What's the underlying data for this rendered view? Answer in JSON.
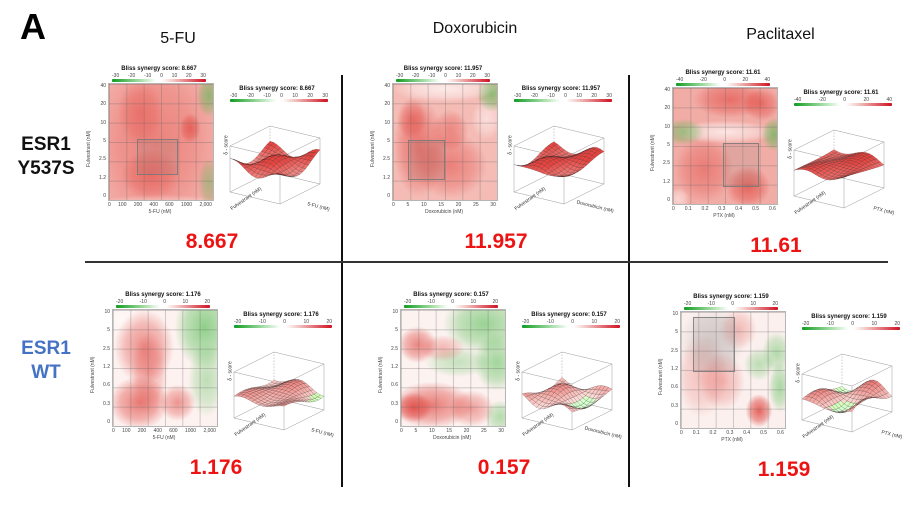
{
  "figure": {
    "label": "A"
  },
  "columns": [
    "5-FU",
    "Doxorubicin",
    "Paclitaxel"
  ],
  "rows": [
    {
      "lines": [
        "ESR1",
        "Y537S"
      ],
      "color": "#111111"
    },
    {
      "lines": [
        "ESR1",
        "WT"
      ],
      "color": "#4472c4"
    }
  ],
  "accent_score_color": "#ee1313",
  "chart_data": [
    {
      "type": "heatmap",
      "cell_line": "ESR1 Y537S",
      "drug": "5-FU",
      "title": "Bliss synergy score: 8.667",
      "score": "8.667",
      "xlabel": "5-FU (nM)",
      "ylabel": "Fulvestrant (nM)",
      "xticks": [
        "0",
        "100",
        "200",
        "400",
        "600",
        "1000",
        "2,000"
      ],
      "yticks": [
        "40",
        "20",
        "10",
        "5",
        "2.5",
        "1.2",
        "0"
      ],
      "colorbar_ticks": [
        "-30",
        "-20",
        "-10",
        "0",
        "10",
        "20",
        "30"
      ],
      "surface": {
        "title": "Bliss synergy score: 8.667",
        "zlabel": "δ - score"
      },
      "style": {
        "bg": "#f3aba5",
        "seed": 1.3,
        "lift": 0.58,
        "redboost": 0.22,
        "green_mesh": false,
        "blobs": [
          [
            45,
            50,
            80,
            100,
            "R",
            0.33
          ],
          [
            30,
            25,
            30,
            40,
            "R",
            0.3
          ],
          [
            78,
            38,
            14,
            18,
            "R",
            0.5
          ],
          [
            40,
            78,
            40,
            30,
            "R",
            0.35
          ],
          [
            96,
            10,
            16,
            26,
            "G",
            0.55
          ],
          [
            96,
            85,
            14,
            30,
            "G",
            0.4
          ],
          [
            50,
            104,
            90,
            12,
            "W",
            0.6
          ]
        ],
        "region": [
          27,
          47,
          37,
          30
        ]
      }
    },
    {
      "type": "heatmap",
      "cell_line": "ESR1 Y537S",
      "drug": "Doxorubicin",
      "title": "Bliss synergy score: 11.957",
      "score": "11.957",
      "xlabel": "Doxorubicin (nM)",
      "ylabel": "Fulvestrant (nM)",
      "xticks": [
        "0",
        "5",
        "10",
        "15",
        "20",
        "25",
        "30"
      ],
      "yticks": [
        "40",
        "20",
        "10",
        "5",
        "2.5",
        "1.2",
        "0"
      ],
      "colorbar_ticks": [
        "-30",
        "-20",
        "-10",
        "0",
        "10",
        "20",
        "30"
      ],
      "surface": {
        "title": "Bliss synergy score: 11.957",
        "zlabel": "δ - score"
      },
      "style": {
        "bg": "#f5bcb6",
        "seed": 2.1,
        "lift": 0.6,
        "redboost": 0.22,
        "green_mesh": false,
        "blobs": [
          [
            25,
            55,
            35,
            60,
            "R",
            0.5
          ],
          [
            55,
            70,
            50,
            40,
            "R",
            0.42
          ],
          [
            18,
            30,
            20,
            25,
            "R",
            0.42
          ],
          [
            55,
            40,
            25,
            25,
            "R",
            0.38
          ],
          [
            50,
            4,
            70,
            16,
            "W",
            0.7
          ],
          [
            95,
            8,
            20,
            22,
            "G",
            0.6
          ],
          [
            90,
            30,
            20,
            25,
            "W",
            0.5
          ]
        ],
        "region": [
          14,
          48,
          34,
          33
        ]
      }
    },
    {
      "type": "heatmap",
      "cell_line": "ESR1 Y537S",
      "drug": "Paclitaxel",
      "title": "Bliss synergy score: 11.61",
      "score": "11.61",
      "xlabel": "PTX (nM)",
      "ylabel": "Fulvestrant (nM)",
      "xticks": [
        "0",
        "0.1",
        "0.2",
        "0.3",
        "0.4",
        "0.5",
        "0.6"
      ],
      "yticks": [
        "40",
        "20",
        "10",
        "5",
        "2.5",
        "1.2",
        "0"
      ],
      "colorbar_ticks": [
        "-40",
        "-20",
        "0",
        "20",
        "40"
      ],
      "surface": {
        "title": "Bliss synergy score: 11.61",
        "zlabel": "δ - score"
      },
      "style": {
        "bg": "#f2aca6",
        "seed": 3.4,
        "lift": 0.58,
        "redboost": 0.2,
        "green_mesh": false,
        "blobs": [
          [
            55,
            10,
            50,
            22,
            "R",
            0.48
          ],
          [
            85,
            14,
            25,
            20,
            "R",
            0.48
          ],
          [
            10,
            38,
            28,
            16,
            "G",
            0.5
          ],
          [
            97,
            40,
            16,
            20,
            "G",
            0.6
          ],
          [
            50,
            38,
            70,
            14,
            "W",
            0.7
          ],
          [
            30,
            70,
            40,
            40,
            "R",
            0.38
          ],
          [
            72,
            85,
            30,
            25,
            "R",
            0.55
          ],
          [
            5,
            96,
            15,
            14,
            "W",
            0.5
          ]
        ],
        "region": [
          48,
          47,
          33,
          37
        ]
      }
    },
    {
      "type": "heatmap",
      "cell_line": "ESR1 WT",
      "drug": "5-FU",
      "title": "Bliss synergy score: 1.176",
      "score": "1.176",
      "xlabel": "5-FU (nM)",
      "ylabel": "Fulvestrant (nM)",
      "xticks": [
        "0",
        "100",
        "200",
        "400",
        "600",
        "1000",
        "2,000"
      ],
      "yticks": [
        "10",
        "5",
        "2.5",
        "1.2",
        "0.6",
        "0.3",
        "0"
      ],
      "colorbar_ticks": [
        "-20",
        "-10",
        "0",
        "10",
        "20"
      ],
      "surface": {
        "title": "Bliss synergy score: 1.176",
        "zlabel": "δ - score"
      },
      "style": {
        "bg": "#fdf2f0",
        "seed": 4.2,
        "lift": 0.44,
        "redboost": 0,
        "green_mesh": true,
        "blobs": [
          [
            30,
            32,
            40,
            45,
            "R",
            0.5
          ],
          [
            25,
            80,
            40,
            32,
            "R",
            0.6
          ],
          [
            62,
            80,
            24,
            22,
            "R",
            0.48
          ],
          [
            35,
            55,
            25,
            50,
            "R",
            0.32
          ],
          [
            88,
            15,
            40,
            50,
            "G",
            0.6
          ],
          [
            90,
            60,
            25,
            45,
            "G",
            0.35
          ],
          [
            10,
            10,
            25,
            20,
            "W",
            0.5
          ]
        ],
        "region": null
      }
    },
    {
      "type": "heatmap",
      "cell_line": "ESR1 WT",
      "drug": "Doxorubicin",
      "title": "Bliss synergy score: 0.157",
      "score": "0.157",
      "xlabel": "Doxorubicin (nM)",
      "ylabel": "Fulvestrant (nM)",
      "xticks": [
        "0",
        "5",
        "10",
        "15",
        "20",
        "25",
        "30"
      ],
      "yticks": [
        "10",
        "5",
        "2.5",
        "1.2",
        "0.6",
        "0.3",
        "0"
      ],
      "colorbar_ticks": [
        "-20",
        "-10",
        "0",
        "10",
        "20"
      ],
      "surface": {
        "title": "Bliss synergy score: 0.157",
        "zlabel": "δ - score"
      },
      "style": {
        "bg": "#fcf2f0",
        "seed": 5.6,
        "lift": 0.4,
        "redboost": 0,
        "green_mesh": true,
        "blobs": [
          [
            16,
            30,
            26,
            22,
            "R",
            0.55
          ],
          [
            40,
            33,
            30,
            16,
            "R",
            0.3
          ],
          [
            30,
            82,
            55,
            28,
            "R",
            0.6
          ],
          [
            12,
            84,
            25,
            18,
            "R",
            0.65
          ],
          [
            68,
            85,
            30,
            22,
            "R",
            0.42
          ],
          [
            80,
            12,
            55,
            35,
            "G",
            0.55
          ],
          [
            92,
            45,
            30,
            35,
            "G",
            0.5
          ],
          [
            55,
            45,
            45,
            18,
            "G",
            0.3
          ],
          [
            95,
            92,
            20,
            20,
            "G",
            0.4
          ]
        ],
        "region": null
      }
    },
    {
      "type": "heatmap",
      "cell_line": "ESR1 WT",
      "drug": "Paclitaxel",
      "title": "Bliss synergy score: 1.159",
      "score": "1.159",
      "xlabel": "PTX (nM)",
      "ylabel": "Fulvestrant (nM)",
      "xticks": [
        "0",
        "0.1",
        "0.2",
        "0.3",
        "0.4",
        "0.5",
        "0.6"
      ],
      "yticks": [
        "10",
        "5",
        "2.5",
        "1.2",
        "0.6",
        "0.3",
        "0"
      ],
      "colorbar_ticks": [
        "-20",
        "-10",
        "0",
        "10",
        "20"
      ],
      "surface": {
        "title": "Bliss synergy score: 1.159",
        "zlabel": "δ - score"
      },
      "style": {
        "bg": "#fbf0ee",
        "seed": 6.8,
        "lift": 0.42,
        "redboost": 0,
        "green_mesh": true,
        "blobs": [
          [
            30,
            25,
            45,
            40,
            "Y",
            0.28
          ],
          [
            20,
            55,
            35,
            50,
            "R",
            0.25
          ],
          [
            40,
            60,
            30,
            35,
            "R",
            0.3
          ],
          [
            55,
            15,
            25,
            25,
            "R",
            0.28
          ],
          [
            75,
            85,
            18,
            20,
            "R",
            0.72
          ],
          [
            92,
            35,
            20,
            25,
            "G",
            0.4
          ],
          [
            75,
            45,
            20,
            20,
            "G",
            0.35
          ],
          [
            95,
            65,
            15,
            30,
            "G",
            0.45
          ]
        ],
        "region": [
          12,
          4,
          38,
          46
        ]
      }
    }
  ]
}
